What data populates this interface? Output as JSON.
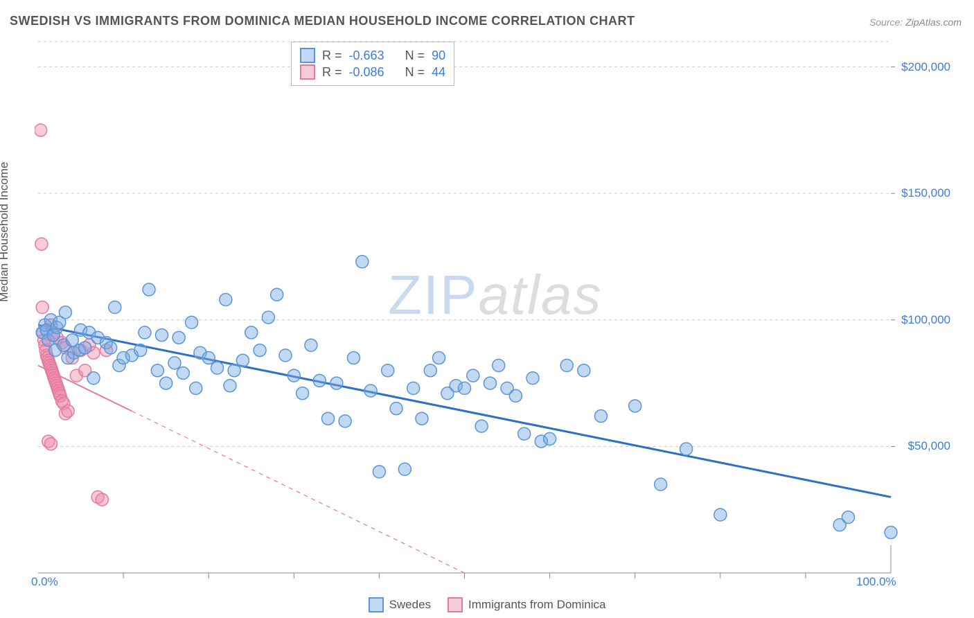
{
  "title": "SWEDISH VS IMMIGRANTS FROM DOMINICA MEDIAN HOUSEHOLD INCOME CORRELATION CHART",
  "source_label": "Source:",
  "source_name": "ZipAtlas.com",
  "y_axis_label": "Median Household Income",
  "watermark_a": "ZIP",
  "watermark_b": "atlas",
  "chart": {
    "type": "scatter",
    "xlim": [
      0,
      100
    ],
    "ylim": [
      0,
      210000
    ],
    "x_ticks_minor": [
      10,
      20,
      30,
      40,
      50,
      60,
      70,
      80,
      90
    ],
    "x_tick_labels": [
      {
        "pos": 0,
        "label": "0.0%"
      },
      {
        "pos": 100,
        "label": "100.0%"
      }
    ],
    "y_gridlines": [
      50000,
      100000,
      150000,
      200000,
      210000
    ],
    "y_tick_labels": [
      {
        "pos": 50000,
        "label": "$50,000"
      },
      {
        "pos": 100000,
        "label": "$100,000"
      },
      {
        "pos": 150000,
        "label": "$150,000"
      },
      {
        "pos": 200000,
        "label": "$200,000"
      }
    ],
    "grid_color": "#cccccc",
    "axis_color": "#888888",
    "background_color": "#ffffff"
  },
  "series": [
    {
      "name": "Swedes",
      "fill": "rgba(120,170,230,0.45)",
      "stroke": "#5a95d6",
      "trend_stroke": "#2f6fc4",
      "trend_width": 3,
      "trend_solid_to_x": 100,
      "trend": {
        "x1": 0,
        "y1": 98000,
        "x2": 100,
        "y2": 30000
      },
      "R": "-0.663",
      "N": "90",
      "points": [
        [
          0.5,
          95000
        ],
        [
          0.8,
          98000
        ],
        [
          1,
          96000
        ],
        [
          1.2,
          92000
        ],
        [
          1.5,
          100000
        ],
        [
          1.8,
          94000
        ],
        [
          2,
          88000
        ],
        [
          2.2,
          97000
        ],
        [
          2.5,
          99000
        ],
        [
          3,
          90000
        ],
        [
          3.2,
          103000
        ],
        [
          3.5,
          85000
        ],
        [
          4,
          92000
        ],
        [
          4.2,
          87000
        ],
        [
          4.8,
          88000
        ],
        [
          5,
          96000
        ],
        [
          5.5,
          89000
        ],
        [
          6,
          95000
        ],
        [
          6.5,
          77000
        ],
        [
          7,
          93000
        ],
        [
          8,
          91000
        ],
        [
          8.5,
          89000
        ],
        [
          9,
          105000
        ],
        [
          9.5,
          82000
        ],
        [
          10,
          85000
        ],
        [
          11,
          86000
        ],
        [
          12,
          88000
        ],
        [
          12.5,
          95000
        ],
        [
          13,
          112000
        ],
        [
          14,
          80000
        ],
        [
          14.5,
          94000
        ],
        [
          15,
          75000
        ],
        [
          16,
          83000
        ],
        [
          16.5,
          93000
        ],
        [
          17,
          79000
        ],
        [
          18,
          99000
        ],
        [
          18.5,
          73000
        ],
        [
          19,
          87000
        ],
        [
          20,
          85000
        ],
        [
          21,
          81000
        ],
        [
          22,
          108000
        ],
        [
          22.5,
          74000
        ],
        [
          23,
          80000
        ],
        [
          24,
          84000
        ],
        [
          25,
          95000
        ],
        [
          26,
          88000
        ],
        [
          27,
          101000
        ],
        [
          28,
          110000
        ],
        [
          29,
          86000
        ],
        [
          30,
          78000
        ],
        [
          31,
          71000
        ],
        [
          32,
          90000
        ],
        [
          33,
          76000
        ],
        [
          34,
          61000
        ],
        [
          35,
          75000
        ],
        [
          36,
          60000
        ],
        [
          37,
          85000
        ],
        [
          38,
          123000
        ],
        [
          39,
          72000
        ],
        [
          40,
          40000
        ],
        [
          41,
          80000
        ],
        [
          42,
          65000
        ],
        [
          43,
          41000
        ],
        [
          44,
          73000
        ],
        [
          45,
          61000
        ],
        [
          46,
          80000
        ],
        [
          47,
          85000
        ],
        [
          48,
          71000
        ],
        [
          49,
          74000
        ],
        [
          50,
          73000
        ],
        [
          51,
          78000
        ],
        [
          52,
          58000
        ],
        [
          53,
          75000
        ],
        [
          54,
          82000
        ],
        [
          55,
          73000
        ],
        [
          56,
          70000
        ],
        [
          57,
          55000
        ],
        [
          58,
          77000
        ],
        [
          59,
          52000
        ],
        [
          60,
          53000
        ],
        [
          62,
          82000
        ],
        [
          64,
          80000
        ],
        [
          66,
          62000
        ],
        [
          70,
          66000
        ],
        [
          73,
          35000
        ],
        [
          76,
          49000
        ],
        [
          80,
          23000
        ],
        [
          94,
          19000
        ],
        [
          95,
          22000
        ],
        [
          100,
          16000
        ]
      ]
    },
    {
      "name": "Immigrants from Dominica",
      "fill": "rgba(240,140,170,0.45)",
      "stroke": "#e57aa0",
      "trend_stroke": "#e57aa0",
      "trend_width": 2,
      "trend_solid_to_x": 11,
      "trend": {
        "x1": 0,
        "y1": 82000,
        "x2": 50,
        "y2": 0
      },
      "R": "-0.086",
      "N": "44",
      "points": [
        [
          0.3,
          175000
        ],
        [
          0.4,
          130000
        ],
        [
          0.5,
          105000
        ],
        [
          0.6,
          95000
        ],
        [
          0.7,
          92000
        ],
        [
          0.8,
          90000
        ],
        [
          0.9,
          88000
        ],
        [
          1,
          86000
        ],
        [
          1.1,
          85000
        ],
        [
          1.2,
          84000
        ],
        [
          1.3,
          83000
        ],
        [
          1.4,
          82000
        ],
        [
          1.5,
          81000
        ],
        [
          1.6,
          80000
        ],
        [
          1.7,
          79000
        ],
        [
          1.8,
          78000
        ],
        [
          1.9,
          77000
        ],
        [
          2,
          76000
        ],
        [
          2.1,
          75000
        ],
        [
          2.2,
          74000
        ],
        [
          2.3,
          73000
        ],
        [
          2.4,
          72000
        ],
        [
          2.5,
          71000
        ],
        [
          2.6,
          70000
        ],
        [
          2.8,
          68000
        ],
        [
          3,
          67000
        ],
        [
          3.2,
          63000
        ],
        [
          3.5,
          64000
        ],
        [
          1.2,
          52000
        ],
        [
          1.5,
          51000
        ],
        [
          4,
          85000
        ],
        [
          4.5,
          78000
        ],
        [
          5,
          88000
        ],
        [
          5.5,
          80000
        ],
        [
          6,
          90000
        ],
        [
          6.5,
          87000
        ],
        [
          7,
          30000
        ],
        [
          7.5,
          29000
        ],
        [
          8,
          88000
        ],
        [
          1.8,
          95000
        ],
        [
          2.2,
          93000
        ],
        [
          2.8,
          91000
        ],
        [
          3.2,
          89000
        ],
        [
          1.5,
          98000
        ]
      ]
    }
  ],
  "stats_box": {
    "R_label": "R =",
    "N_label": "N ="
  },
  "marker_radius": 9,
  "marker_stroke_width": 1.5
}
